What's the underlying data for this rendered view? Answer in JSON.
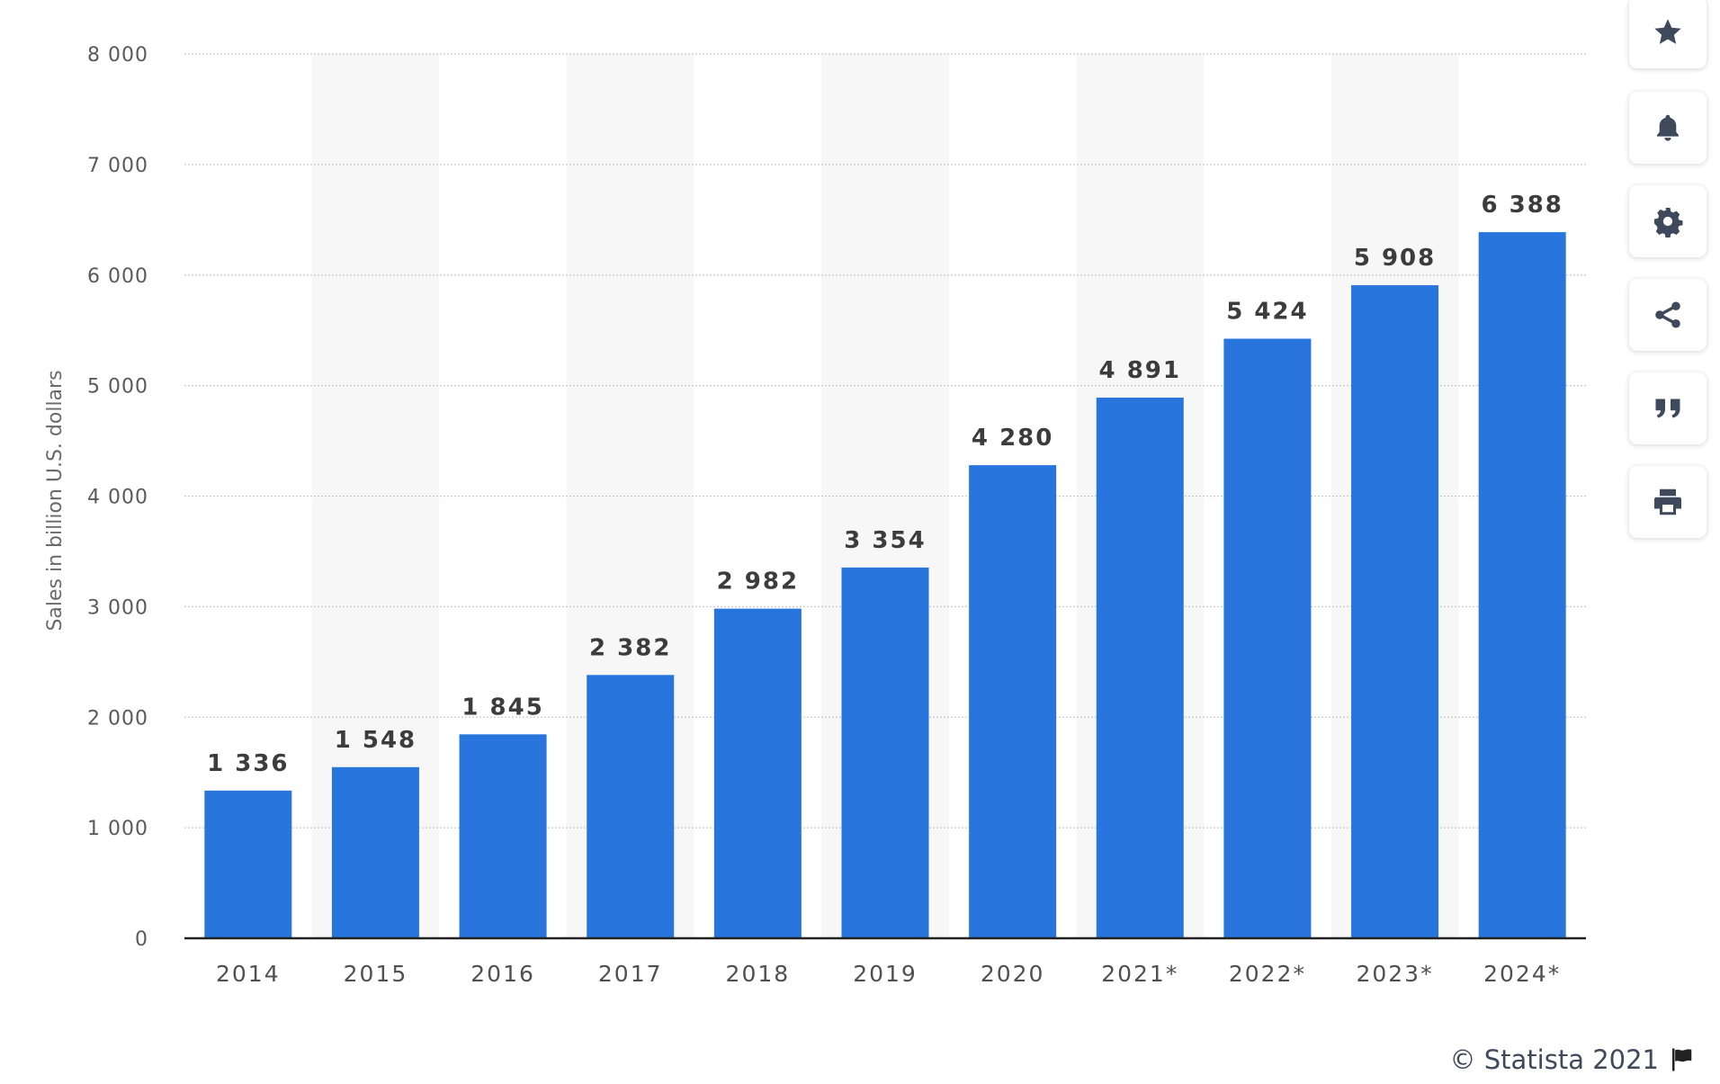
{
  "chart_data": {
    "type": "bar",
    "categories": [
      "2014",
      "2015",
      "2016",
      "2017",
      "2018",
      "2019",
      "2020",
      "2021*",
      "2022*",
      "2023*",
      "2024*"
    ],
    "values": [
      1336,
      1548,
      1845,
      2382,
      2982,
      3354,
      4280,
      4891,
      5424,
      5908,
      6388
    ],
    "value_labels": [
      "1 336",
      "1 548",
      "1 845",
      "2 382",
      "2 982",
      "3 354",
      "4 280",
      "4 891",
      "5 424",
      "5 908",
      "6 388"
    ],
    "ylabel": "Sales in billion U.S. dollars",
    "ylim": [
      0,
      8000
    ],
    "yticks": [
      0,
      1000,
      2000,
      3000,
      4000,
      5000,
      6000,
      7000,
      8000
    ],
    "ytick_labels": [
      "0",
      "1 000",
      "2 000",
      "3 000",
      "4 000",
      "5 000",
      "6 000",
      "7 000",
      "8 000"
    ],
    "grid": true,
    "bar_color": "#2876dd",
    "alt_band_color": "#f7f7f7"
  },
  "toolbar": {
    "buttons": [
      {
        "name": "favorite",
        "icon": "star-icon"
      },
      {
        "name": "notify",
        "icon": "bell-icon"
      },
      {
        "name": "settings",
        "icon": "gear-icon"
      },
      {
        "name": "share",
        "icon": "share-icon"
      },
      {
        "name": "cite",
        "icon": "quote-icon"
      },
      {
        "name": "print",
        "icon": "print-icon"
      }
    ],
    "icon_color": "#3e4a5c"
  },
  "footer": {
    "credit": "© Statista 2021",
    "flag_icon": "flag-icon"
  }
}
